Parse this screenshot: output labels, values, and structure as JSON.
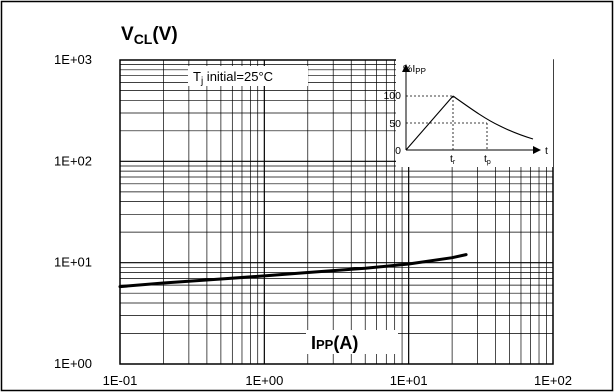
{
  "chart_data": {
    "type": "line",
    "scale": {
      "x": "log",
      "y": "log"
    },
    "xlim": [
      0.1,
      100
    ],
    "ylim": [
      1,
      1000
    ],
    "x_ticks": [
      "1E-01",
      "1E+00",
      "1E+01",
      "1E+02"
    ],
    "y_ticks": [
      "1E+00",
      "1E+01",
      "1E+02",
      "1E+03"
    ],
    "ylabel": {
      "main": "V",
      "sub": "CL",
      "unit": "(V)"
    },
    "xlabel": {
      "main": "I",
      "sub": "PP",
      "unit": "(A)"
    },
    "grid": true,
    "annotation": {
      "main": "T",
      "sub": "j",
      "rest": " initial=25°C"
    },
    "series": [
      {
        "x": [
          0.1,
          0.2,
          0.5,
          1,
          2,
          5,
          10,
          20,
          25
        ],
        "y": [
          5.8,
          6.3,
          6.9,
          7.4,
          8.0,
          8.8,
          9.7,
          11.2,
          12.0
        ]
      }
    ],
    "inset": {
      "ylabel": {
        "main": "%I",
        "sub": "PP"
      },
      "xlabel": "t",
      "y_ticks": [
        "100",
        "50",
        "0"
      ],
      "x_ticks": [
        {
          "main": "t",
          "sub": "r"
        },
        {
          "main": "t",
          "sub": "p"
        }
      ]
    }
  }
}
